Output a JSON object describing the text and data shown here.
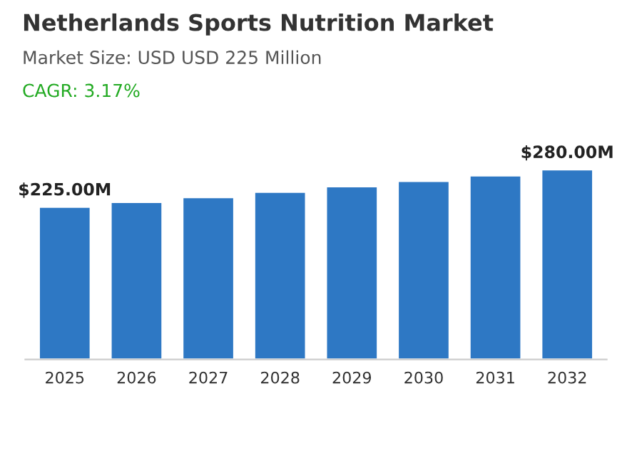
{
  "chart_data": {
    "type": "bar",
    "title": "Netherlands Sports Nutrition Market",
    "subtitle": "Market Size: USD USD 225 Million",
    "annotations": [
      "CAGR: 3.17%"
    ],
    "categories": [
      "2025",
      "2026",
      "2027",
      "2028",
      "2029",
      "2030",
      "2031",
      "2032"
    ],
    "values": [
      225,
      232,
      239,
      247,
      255,
      263,
      271,
      280
    ],
    "value_labels": [
      "$225.00M",
      null,
      null,
      null,
      null,
      null,
      null,
      "$280.00M"
    ],
    "color": "#2e78c4",
    "grid": false,
    "legend": false
  }
}
